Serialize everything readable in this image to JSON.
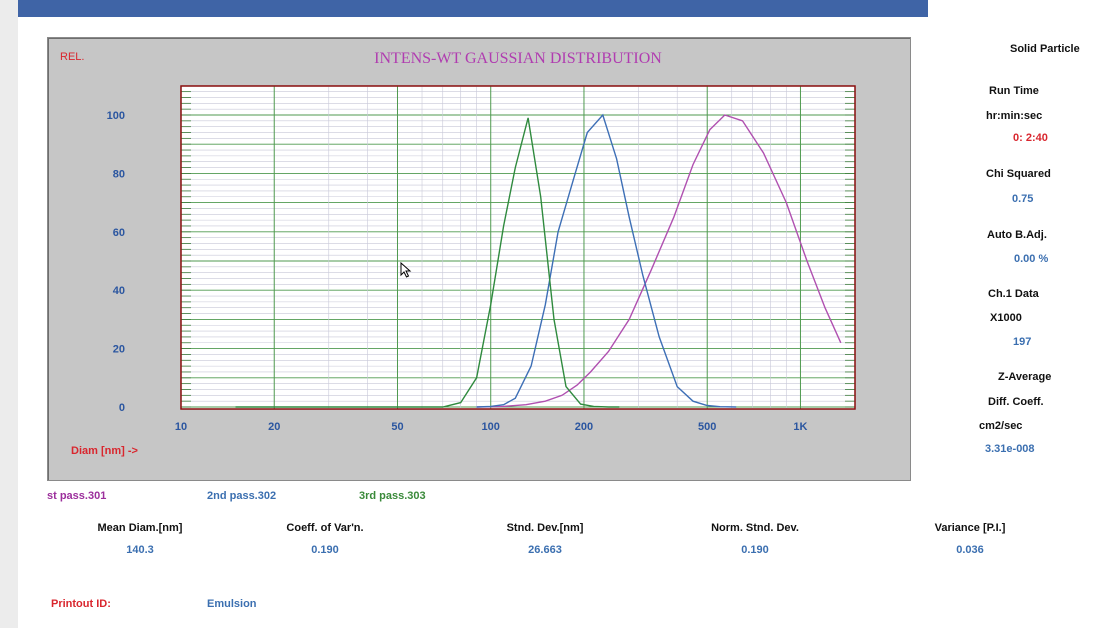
{
  "chart_data": {
    "type": "line",
    "title": "INTENS-WT GAUSSIAN DISTRIBUTION",
    "ylabel": "REL.",
    "xlabel": "Diam [nm] ->",
    "x_scale": "log",
    "xlim": [
      10,
      1500
    ],
    "ylim": [
      0,
      110
    ],
    "x_ticks": [
      10,
      20,
      50,
      100,
      200,
      500,
      1000
    ],
    "x_tick_labels": [
      "10",
      "20",
      "50",
      "100",
      "200",
      "500",
      "1K"
    ],
    "y_ticks": [
      0,
      20,
      40,
      60,
      80,
      100
    ],
    "y_tick_labels": [
      "0",
      "20",
      "40",
      "60",
      "80",
      "100"
    ],
    "grid": true,
    "series": [
      {
        "name": "st pass.301",
        "color": "#b050b0",
        "x": [
          90,
          110,
          130,
          150,
          170,
          190,
          210,
          240,
          280,
          330,
          390,
          450,
          510,
          570,
          650,
          760,
          900,
          1050,
          1200,
          1350
        ],
        "y": [
          0,
          0.2,
          0.8,
          2,
          4,
          7.5,
          12,
          19,
          30,
          47,
          65,
          83,
          95,
          100,
          98,
          87,
          70,
          50,
          34,
          22
        ]
      },
      {
        "name": "2nd pass.302",
        "color": "#3d6fb6",
        "x": [
          90,
          100,
          110,
          120,
          135,
          150,
          165,
          185,
          205,
          230,
          255,
          280,
          310,
          350,
          400,
          450,
          500,
          550,
          620
        ],
        "y": [
          0,
          0.2,
          0.8,
          3,
          14,
          35,
          60,
          78,
          94,
          100,
          85,
          65,
          45,
          24,
          7,
          2,
          0.5,
          0.1,
          0
        ]
      },
      {
        "name": "3rd pass.303",
        "color": "#2f8a3e",
        "x": [
          15,
          70,
          80,
          90,
          100,
          110,
          120,
          132,
          145,
          160,
          175,
          195,
          215,
          240,
          260
        ],
        "y": [
          0,
          0,
          1.5,
          10,
          35,
          62,
          82,
          99,
          72,
          30,
          7,
          1,
          0.2,
          0,
          0
        ]
      }
    ]
  },
  "side_panel": {
    "solid_particle": "Solid Particle",
    "run_time_label": "Run Time",
    "run_time_unit": "hr:min:sec",
    "run_time_value": "0: 2:40",
    "chi_label": "Chi Squared",
    "chi_value": "0.75",
    "auto_label": "Auto B.Adj.",
    "auto_value": "0.00 %",
    "ch1_label": "Ch.1 Data",
    "ch1_mult": "X1000",
    "ch1_value": "197",
    "zavg_label": "Z-Average",
    "diff_label": "Diff. Coeff.",
    "diff_unit": "cm2/sec",
    "diff_value": "3.31e-008"
  },
  "stats": {
    "mean_label": "Mean Diam.[nm]",
    "mean_value": "140.3",
    "cov_label": "Coeff. of Var'n.",
    "cov_value": "0.190",
    "sd_label": "Stnd. Dev.[nm]",
    "sd_value": "26.663",
    "nsd_label": "Norm. Stnd. Dev.",
    "nsd_value": "0.190",
    "var_label": "Variance [P.I.]",
    "var_value": "0.036"
  },
  "footer": {
    "printout_label": "Printout ID:",
    "printout_value": "Emulsion"
  }
}
